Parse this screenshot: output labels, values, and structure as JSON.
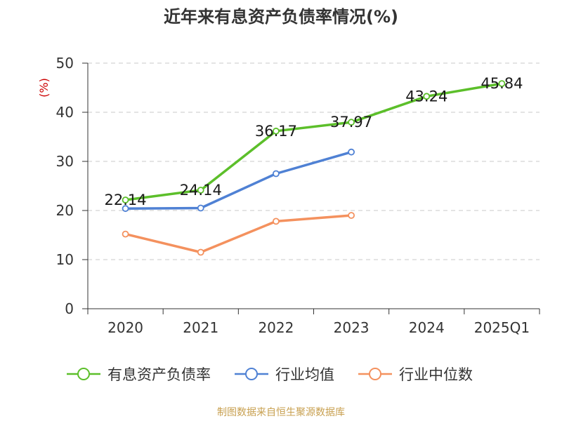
{
  "chart_data": {
    "type": "line",
    "title": "近年来有息资产负债率情况(%)",
    "ylabel": "(%)",
    "xlabel": "",
    "categories": [
      "2020",
      "2021",
      "2022",
      "2023",
      "2024",
      "2025Q1"
    ],
    "ylim": [
      0,
      50
    ],
    "yticks": [
      "0",
      "10",
      "20",
      "30",
      "40",
      "50"
    ],
    "grid": true,
    "legend_position": "bottom",
    "series": [
      {
        "name": "有息资产负债率",
        "color": "#5cbf2a",
        "values": [
          22.14,
          24.14,
          36.17,
          37.97,
          43.24,
          45.84
        ],
        "labels": [
          "22.14",
          "24.14",
          "36.17",
          "37.97",
          "43.24",
          "45.84"
        ]
      },
      {
        "name": "行业均值",
        "color": "#4f81d4",
        "values": [
          20.4,
          20.5,
          27.5,
          31.9,
          null,
          null
        ]
      },
      {
        "name": "行业中位数",
        "color": "#f4915e",
        "values": [
          15.2,
          11.5,
          17.8,
          19.0,
          null,
          null
        ]
      }
    ]
  },
  "source": "制图数据来自恒生聚源数据库"
}
